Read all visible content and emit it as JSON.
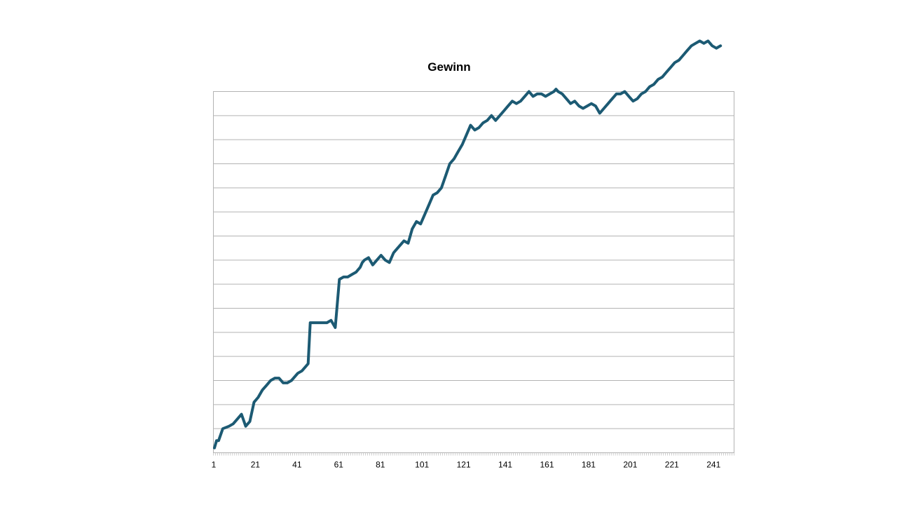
{
  "chart_data": {
    "type": "line",
    "title": "Gewinn",
    "xlabel": "",
    "ylabel": "",
    "xlim": [
      1,
      250
    ],
    "y_grid_lines": 15,
    "x_tick_labels": [
      "1",
      "21",
      "41",
      "61",
      "81",
      "101",
      "121",
      "141",
      "161",
      "181",
      "201",
      "221",
      "241"
    ],
    "x_tick_values": [
      1,
      21,
      41,
      61,
      81,
      101,
      121,
      141,
      161,
      181,
      201,
      221,
      241
    ],
    "y_axis_labels_shown": false,
    "grid": true,
    "legend": "none",
    "colors": {
      "line": "#1c5a73",
      "grid": "#b3b3b3",
      "frame": "#b3b3b3"
    },
    "series": [
      {
        "x": [
          1,
          2,
          3,
          5,
          8,
          10,
          12,
          14,
          16,
          18,
          20,
          22,
          24,
          26,
          28,
          30,
          32,
          34,
          36,
          38,
          39,
          41,
          43,
          45,
          46,
          47,
          49,
          51,
          53,
          55,
          57,
          59,
          61,
          63,
          65,
          67,
          69,
          71,
          72,
          73,
          75,
          77,
          79,
          81,
          83,
          85,
          87,
          88,
          90,
          92,
          94,
          96,
          98,
          100,
          102,
          104,
          106,
          108,
          110,
          112,
          114,
          116,
          118,
          120,
          122,
          124,
          126,
          128,
          130,
          132,
          134,
          136,
          138,
          140,
          142,
          144,
          146,
          148,
          150,
          152,
          154,
          156,
          158,
          160,
          162,
          164,
          165,
          166,
          168,
          170,
          172,
          174,
          176,
          178,
          180,
          182,
          184,
          186,
          188,
          190,
          192,
          194,
          196,
          198,
          200,
          202,
          204,
          206,
          208,
          210,
          212,
          214,
          216,
          218,
          220,
          222,
          224,
          226,
          228,
          230,
          232,
          234,
          236,
          238,
          240,
          242,
          244
        ],
        "y": [
          0.2,
          0.5,
          0.5,
          1.0,
          1.1,
          1.2,
          1.4,
          1.6,
          1.1,
          1.3,
          2.1,
          2.3,
          2.6,
          2.8,
          3.0,
          3.1,
          3.1,
          2.9,
          2.9,
          3.0,
          3.1,
          3.3,
          3.4,
          3.6,
          3.7,
          5.4,
          5.4,
          5.4,
          5.4,
          5.4,
          5.5,
          5.2,
          7.2,
          7.3,
          7.3,
          7.4,
          7.5,
          7.7,
          7.9,
          8.0,
          8.1,
          7.8,
          8.0,
          8.2,
          8.0,
          7.9,
          8.3,
          8.4,
          8.6,
          8.8,
          8.7,
          9.3,
          9.6,
          9.5,
          9.9,
          10.3,
          10.7,
          10.8,
          11.0,
          11.5,
          12.0,
          12.2,
          12.5,
          12.8,
          13.2,
          13.6,
          13.4,
          13.5,
          13.7,
          13.8,
          14.0,
          13.8,
          14.0,
          14.2,
          14.4,
          14.6,
          14.5,
          14.6,
          14.8,
          15.0,
          14.8,
          14.9,
          14.9,
          14.8,
          14.9,
          15.0,
          15.1,
          15.0,
          14.9,
          14.7,
          14.5,
          14.6,
          14.4,
          14.3,
          14.4,
          14.5,
          14.4,
          14.1,
          14.3,
          14.5,
          14.7,
          14.9,
          14.9,
          15.0,
          14.8,
          14.6,
          14.7,
          14.9,
          15.0,
          15.2,
          15.3,
          15.5,
          15.6,
          15.8,
          16.0,
          16.2,
          16.3,
          16.5,
          16.7,
          16.9,
          17.0,
          17.1,
          17.0,
          17.1,
          16.9,
          16.8,
          16.9
        ]
      }
    ]
  }
}
